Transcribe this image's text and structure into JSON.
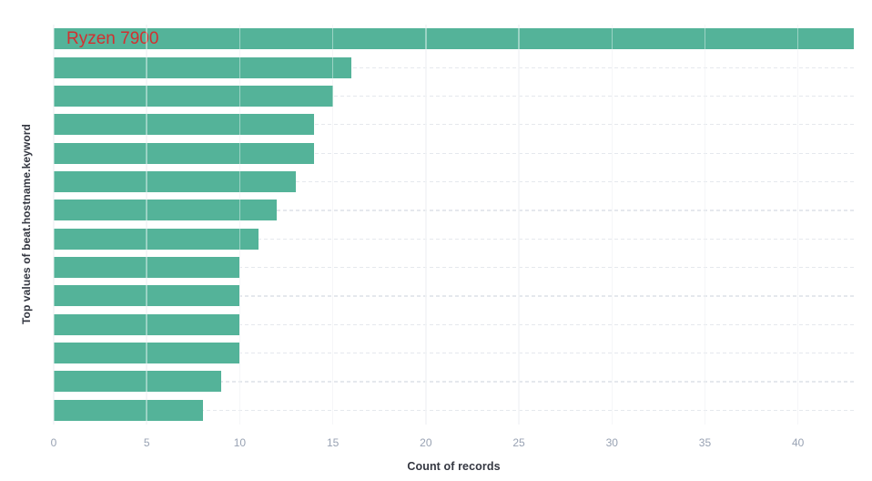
{
  "chart_data": {
    "type": "bar",
    "orientation": "horizontal",
    "title": "",
    "xlabel": "Count of records",
    "ylabel": "Top values of beat.hostname.keyword",
    "values": [
      43,
      16,
      15,
      14,
      14,
      13,
      12,
      11,
      10,
      10,
      10,
      10,
      9,
      8
    ],
    "xlim": [
      0,
      43
    ],
    "xticks": [
      0,
      5,
      10,
      15,
      20,
      25,
      30,
      35,
      40
    ],
    "bar_color": "#54b399",
    "grid": {
      "vertical": "solid",
      "horizontal": "dashed"
    },
    "legend": "none",
    "annotation": {
      "text": "Ryzen 7900",
      "color": "#d23030",
      "bar_index": 0
    }
  }
}
